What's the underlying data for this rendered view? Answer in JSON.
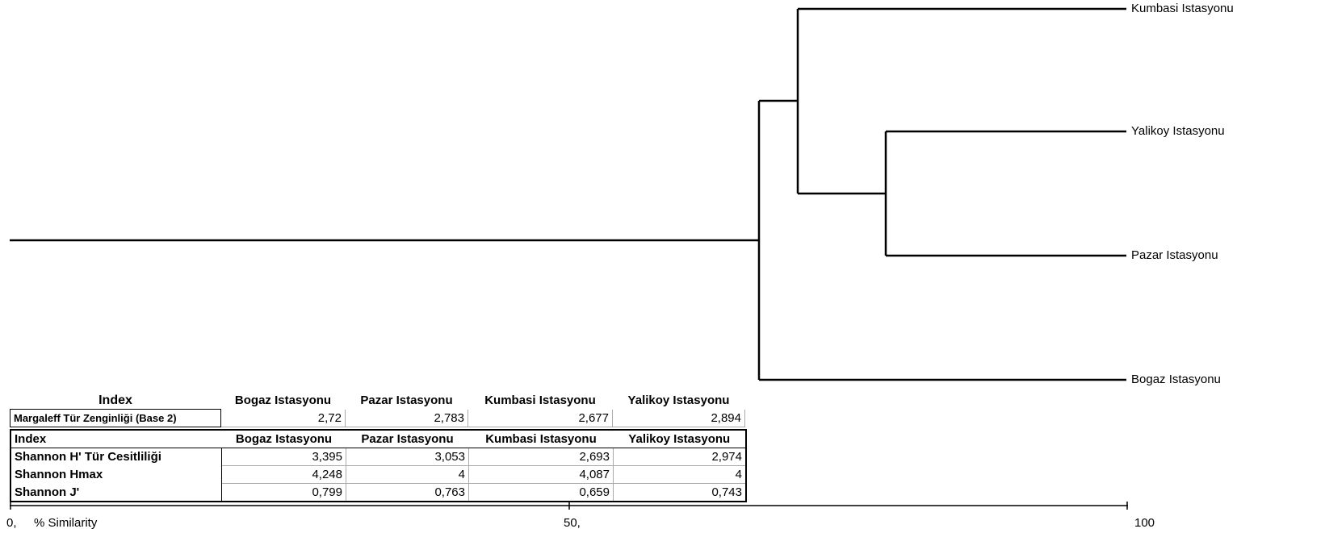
{
  "dendrogram": {
    "leaves": [
      "Kumbasi Istasyonu",
      "Yalikoy Istasyonu",
      "Pazar Istasyonu",
      "Bogaz Istasyonu"
    ],
    "axis": {
      "label": "% Similarity",
      "ticks": [
        "0,",
        "50,",
        "100"
      ]
    }
  },
  "table1": {
    "index_header": "Index",
    "columns": [
      "Bogaz Istasyonu",
      "Pazar Istasyonu",
      "Kumbasi Istasyonu",
      "Yalikoy Istasyonu"
    ],
    "rows": [
      {
        "label": "Margaleff Tür Zenginliği (Base 2)",
        "values": [
          "2,72",
          "2,783",
          "2,677",
          "2,894"
        ]
      }
    ]
  },
  "table2": {
    "index_header": "Index",
    "columns": [
      "Bogaz Istasyonu",
      "Pazar Istasyonu",
      "Kumbasi Istasyonu",
      "Yalikoy Istasyonu"
    ],
    "rows": [
      {
        "label": "Shannon H' Tür Cesitliliği",
        "values": [
          "3,395",
          "3,053",
          "2,693",
          "2,974"
        ]
      },
      {
        "label": "Shannon Hmax",
        "values": [
          "4,248",
          "4",
          "4,087",
          "4"
        ]
      },
      {
        "label": "Shannon J'",
        "values": [
          "0,799",
          "0,763",
          "0,659",
          "0,743"
        ]
      }
    ]
  }
}
